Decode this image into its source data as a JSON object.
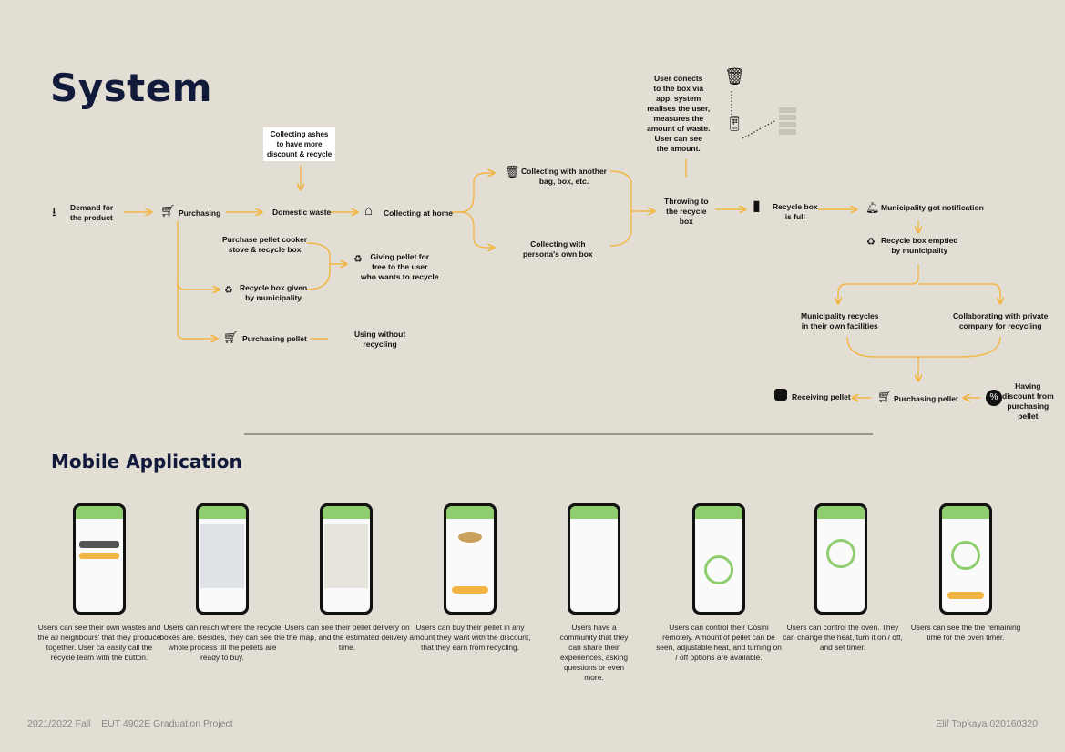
{
  "headings": {
    "system": "System",
    "mobile": "Mobile Application"
  },
  "flow": {
    "demand": "Demand for\nthe product",
    "purchasing": "Purchasing",
    "domestic_waste": "Domestic waste",
    "collecting_ashes_note": "Collecting ashes\nto have more\ndiscount & recycle",
    "collecting_home": "Collecting at home",
    "purchase_stove": "Purchase pellet cooker\nstove & recycle box",
    "box_given": "Recycle box given\nby municipality",
    "giving_pellet": "Giving pellet for\nfree to the user\nwho wants to recycle",
    "purchasing_pellet": "Purchasing pellet",
    "using_without": "Using without\nrecycling",
    "collecting_another": "Collecting with another\nbag, box, etc.",
    "collecting_own": "Collecting with\npersona's own box",
    "user_connects": "User conects\nto the box via\napp, system\nrealises the user,\nmeasures the\namount of waste.\nUser can see\nthe amount.",
    "throwing": "Throwing to\nthe recycle\nbox",
    "box_full": "Recycle box\nis full",
    "municipality_notif": "Municipality got notification",
    "box_emptied": "Recycle box emptied\nby municipality",
    "municipality_recycles": "Municipality recycles\nin their own facilities",
    "collaborating": "Collaborating with private\ncompany for recycling",
    "having_discount": "Having\ndiscount from\npurchasing\npellet",
    "purchasing_pellet_2": "Purchasing pellet",
    "receiving_pellet": "Receiving pellet"
  },
  "captions": [
    "Users can see their own wastes and the all neighbours' that they produce together. User ca easily call the recycle team with the button.",
    "Users can reach where the recycle boxes are. Besides, they can see the whole process till the pellets are ready to buy.",
    "Users can see their pellet delivery on the map, and the estimated delivery time.",
    "Users can buy their pellet in any amount they want with the discount, that they earn from recycling.",
    "Users have a community that they can share their experiences, asking questions or even more.",
    "Users can control their Cosini remotely. Amount of pellet can be seen, adjustable heat, and turning on / off options are available.",
    "Users can control the oven. They can change the heat, turn it on / off, and set timer.",
    "Users can see the the remaining time for the oven timer."
  ],
  "footer": {
    "left": "2021/2022 Fall    EUT 4902E Graduation Project",
    "right": "Elif Topkaya 020160320"
  },
  "colors": {
    "arrow": "#f2b544",
    "app_green": "#8fce6e",
    "accent": "#f2b544",
    "heading": "#111a3b"
  }
}
